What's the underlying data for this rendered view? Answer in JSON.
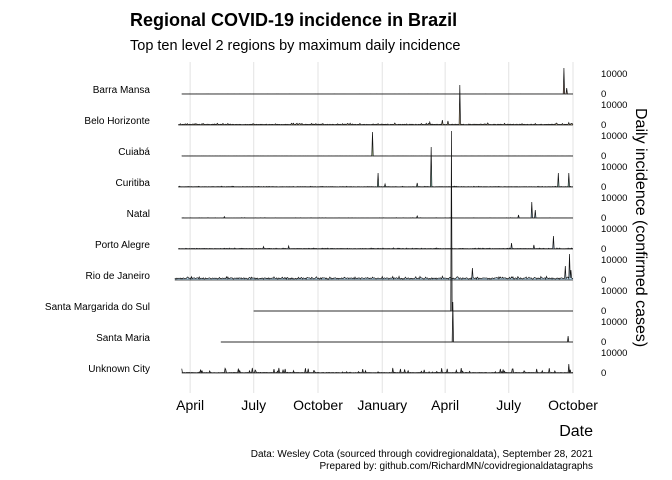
{
  "chart_data": {
    "type": "area",
    "title": "Regional COVID-19 incidence in Brazil",
    "subtitle": "Top ten level 2 regions by maximum daily incidence",
    "xlabel": "Date",
    "ylabel": "Daily incidence (confirmed cases)",
    "x_ticks": [
      "April",
      "July",
      "October",
      "January",
      "April",
      "July",
      "October"
    ],
    "x_tick_dates": [
      "2020-04-01",
      "2020-07-01",
      "2020-10-01",
      "2021-01-01",
      "2021-04-01",
      "2021-07-01",
      "2021-10-01"
    ],
    "x_range": [
      "2020-02-15",
      "2021-10-01"
    ],
    "y_ticks": [
      0,
      10000
    ],
    "y_per_panel_max": 13000,
    "grid": true,
    "series": [
      {
        "name": "Barra Mansa",
        "color": "#8c2d04",
        "start": "2020-03-20",
        "baseline": 30,
        "noise": 20,
        "spikes": [
          [
            "2021-09-18",
            13000
          ],
          [
            "2021-09-22",
            3000
          ]
        ]
      },
      {
        "name": "Belo Horizonte",
        "color": "#a6761d",
        "start": "2020-03-15",
        "baseline": 300,
        "noise": 600,
        "spikes": [
          [
            "2021-04-22",
            20000
          ],
          [
            "2021-03-28",
            2500
          ],
          [
            "2021-04-05",
            2000
          ],
          [
            "2021-03-10",
            1500
          ],
          [
            "2021-09-25",
            1200
          ],
          [
            "2021-06-01",
            1000
          ]
        ]
      },
      {
        "name": "Cuiabá",
        "color": "#66a61e",
        "start": "2020-03-20",
        "baseline": 40,
        "noise": 30,
        "spikes": [
          [
            "2020-12-18",
            12000
          ]
        ]
      },
      {
        "name": "Curitiba",
        "color": "#1b9e77",
        "start": "2020-03-15",
        "baseline": 150,
        "noise": 250,
        "spikes": [
          [
            "2021-03-12",
            20000
          ],
          [
            "2020-12-26",
            7000
          ],
          [
            "2021-09-10",
            7000
          ],
          [
            "2021-09-25",
            7000
          ],
          [
            "2021-02-20",
            2000
          ],
          [
            "2021-01-05",
            1500
          ]
        ]
      },
      {
        "name": "Natal",
        "color": "#1f78b4",
        "start": "2020-03-20",
        "baseline": 60,
        "noise": 120,
        "spikes": [
          [
            "2021-08-03",
            8000
          ],
          [
            "2021-08-08",
            4000
          ],
          [
            "2021-07-15",
            1500
          ],
          [
            "2021-02-20",
            1000
          ],
          [
            "2020-05-20",
            700
          ]
        ]
      },
      {
        "name": "Porto Alegre",
        "color": "#4575b4",
        "start": "2020-03-15",
        "baseline": 200,
        "noise": 300,
        "spikes": [
          [
            "2021-09-03",
            6500
          ],
          [
            "2021-07-05",
            3000
          ],
          [
            "2021-08-06",
            2000
          ],
          [
            "2020-08-20",
            1500
          ],
          [
            "2020-07-15",
            1200
          ]
        ]
      },
      {
        "name": "Rio de Janeiro",
        "color": "#6baed6",
        "start": "2020-03-10",
        "baseline": 800,
        "noise": 900,
        "spikes": [
          [
            "2021-09-26",
            13000
          ],
          [
            "2021-09-20",
            7000
          ],
          [
            "2021-05-10",
            6000
          ],
          [
            "2021-09-28",
            5000
          ]
        ]
      },
      {
        "name": "Santa Margarida do Sul",
        "color": "#4d4d4d",
        "start": "2020-07-01",
        "baseline": 0,
        "noise": 0,
        "spikes": [
          [
            "2021-04-10",
            90000
          ]
        ]
      },
      {
        "name": "Santa Maria",
        "color": "#252525",
        "start": "2020-05-15",
        "baseline": 5,
        "noise": 10,
        "spikes": [
          [
            "2021-04-12",
            20000
          ],
          [
            "2021-09-24",
            3000
          ]
        ]
      },
      {
        "name": "Unknown City",
        "color": "#000000",
        "start": "2020-03-20",
        "baseline": 200,
        "noise": 2500,
        "spikes": [
          [
            "2021-09-25",
            4500
          ],
          [
            "2021-08-10",
            2000
          ]
        ]
      }
    ]
  },
  "caption": {
    "line1": "Data: Wesley Cota (sourced through covidregionaldata), September 28, 2021",
    "line2": "Prepared by: github.com/RichardMN/covidregionaldatagraphs"
  }
}
